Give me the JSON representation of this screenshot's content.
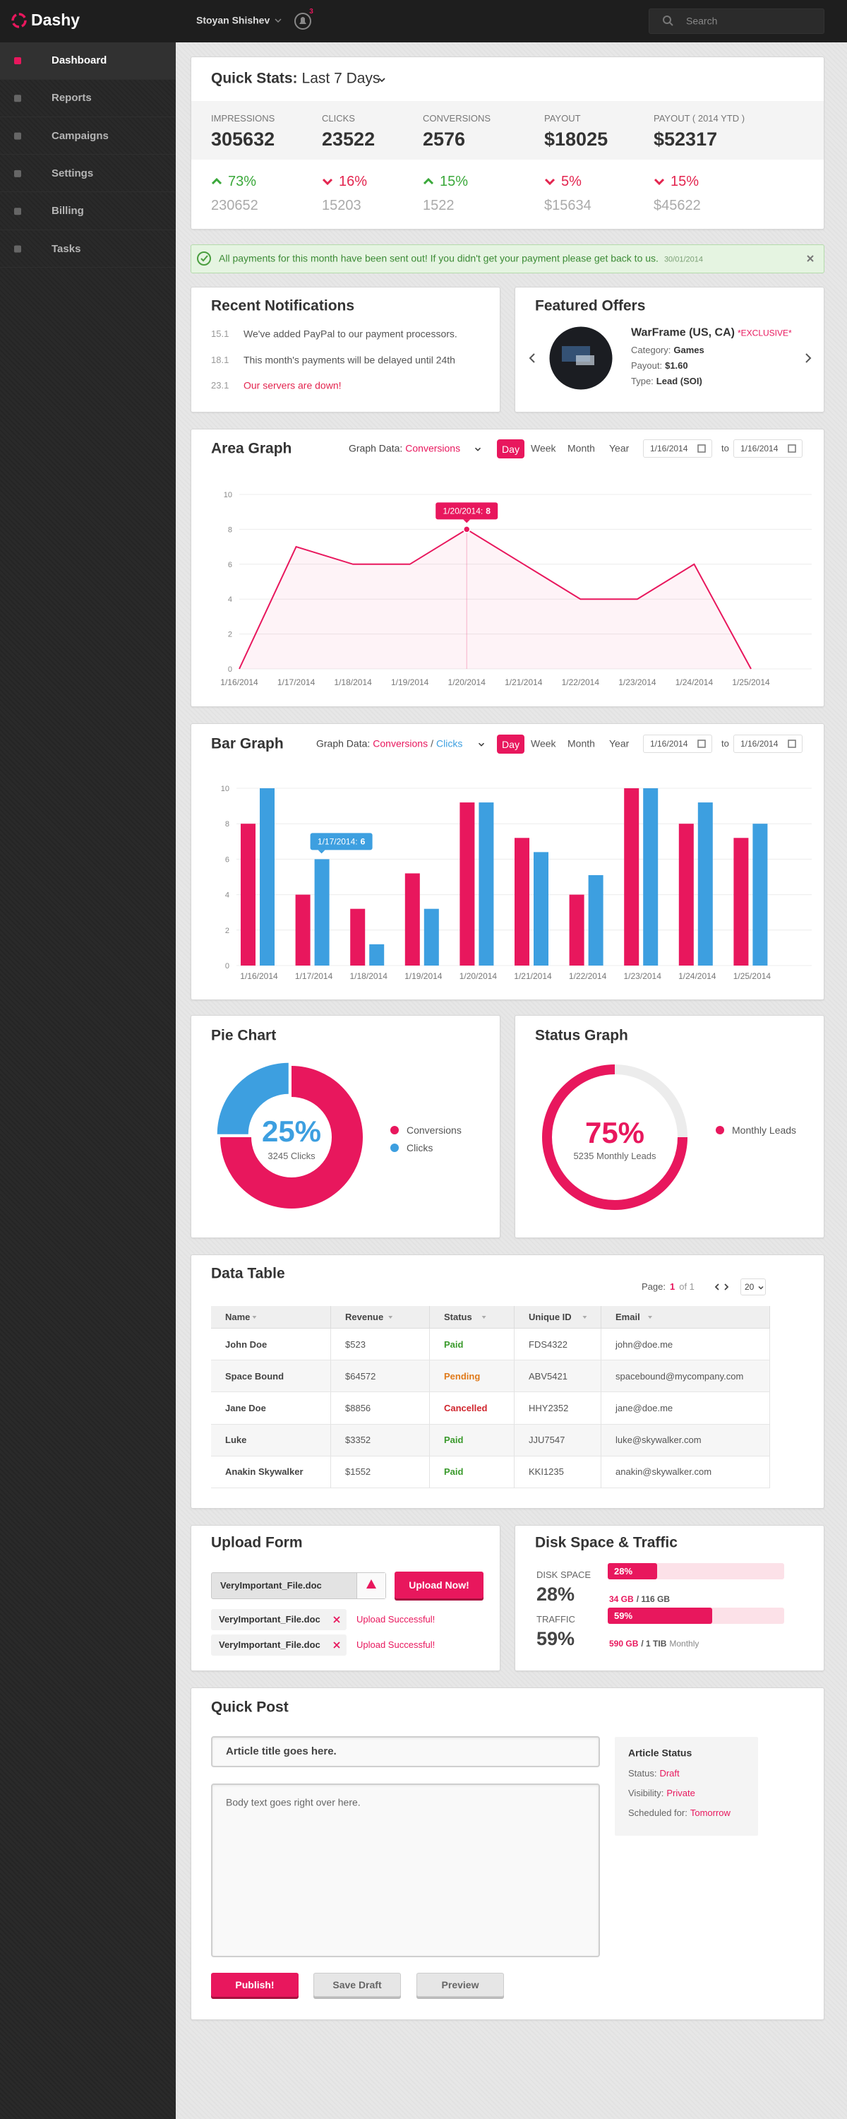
{
  "header": {
    "brand": "Dashy",
    "user": "Stoyan Shishev",
    "notifications": "3",
    "search_placeholder": "Search"
  },
  "sidebar": {
    "items": [
      "Dashboard",
      "Reports",
      "Campaigns",
      "Settings",
      "Billing",
      "Tasks"
    ],
    "active": 0,
    "active_color": "#e8175d"
  },
  "quick_stats": {
    "title": "Quick Stats:",
    "range": "Last 7 Days",
    "up_color": "#3aa83a",
    "down_color": "#e3254f",
    "stats": [
      {
        "label": "IMPRESSIONS",
        "value": 305632,
        "change": "73%",
        "trend": "up",
        "previous": 230652
      },
      {
        "label": "CLICKS",
        "value": 23522,
        "change": "16%",
        "trend": "down",
        "previous": 15203
      },
      {
        "label": "CONVERSIONS",
        "value": 2576,
        "change": "15%",
        "trend": "up",
        "previous": 1522
      },
      {
        "label": "PAYOUT",
        "value": "$18025",
        "change": "5%",
        "trend": "down",
        "previous": "$15634"
      },
      {
        "label": "PAYOUT ( 2014 YTD )",
        "value": "$52317",
        "change": "15%",
        "trend": "down",
        "previous": "$45622"
      }
    ]
  },
  "alert": {
    "text": "All payments for this month have been sent out! If you didn't get your payment please get back to us.",
    "date": "30/01/2014"
  },
  "notifications": {
    "title": "Recent Notifications",
    "items": [
      {
        "date": "15.1",
        "text": "We've added PayPal to our payment processors.",
        "alert": false
      },
      {
        "date": "18.1",
        "text": "This month's payments will be delayed until 24th",
        "alert": false
      },
      {
        "date": "23.1",
        "text": "Our servers are down!",
        "alert": true
      }
    ]
  },
  "featured_offers": {
    "title": "Featured Offers",
    "name": "WarFrame (US, CA)",
    "tag": "*EXCLUSIVE*",
    "details": [
      {
        "label": "Category:",
        "value": "Games"
      },
      {
        "label": "Payout:",
        "value": "$1.60"
      },
      {
        "label": "Type:",
        "value": "Lead (SOI)"
      }
    ]
  },
  "area_graph": {
    "title": "Area Graph",
    "data_label": "Graph Data:",
    "periods": [
      "Day",
      "Week",
      "Month",
      "Year"
    ],
    "active_period": 0,
    "from": "1/16/2014",
    "to_label": "to",
    "to": "1/16/2014",
    "chart": {
      "type": "area",
      "x": [
        "1/16/2014",
        "1/17/2014",
        "1/18/2014",
        "1/19/2014",
        "1/20/2014",
        "1/21/2014",
        "1/22/2014",
        "1/23/2014",
        "1/24/2014",
        "1/25/2014"
      ],
      "series": [
        {
          "name": "Conversions",
          "color": "#e8175d",
          "values": [
            0,
            7,
            6,
            6,
            8,
            6,
            4,
            4,
            6,
            0
          ]
        }
      ],
      "ylim": [
        0,
        10
      ],
      "yticks": [
        0,
        2,
        4,
        6,
        8,
        10
      ],
      "grid": true,
      "tooltip": {
        "label": "1/20/2014:",
        "value": 8
      }
    }
  },
  "bar_graph": {
    "title": "Bar Graph",
    "data_label": "Graph Data:",
    "separator": "/",
    "periods": [
      "Day",
      "Week",
      "Month",
      "Year"
    ],
    "active_period": 0,
    "from": "1/16/2014",
    "to_label": "to",
    "to": "1/16/2014",
    "chart": {
      "type": "bar",
      "categories": [
        "1/16/2014",
        "1/17/2014",
        "1/18/2014",
        "1/19/2014",
        "1/20/2014",
        "1/21/2014",
        "1/22/2014",
        "1/23/2014",
        "1/24/2014",
        "1/25/2014"
      ],
      "series": [
        {
          "name": "Conversions",
          "color": "#e8175d",
          "values": [
            8,
            4,
            3.2,
            5.2,
            9.2,
            7.2,
            4,
            10,
            8,
            7.2
          ]
        },
        {
          "name": "Clicks",
          "color": "#3d9fe0",
          "values": [
            10,
            6,
            1.2,
            3.2,
            9.2,
            6.4,
            5.1,
            10,
            9.2,
            8
          ]
        }
      ],
      "ylim": [
        0,
        10
      ],
      "yticks": [
        0,
        2,
        4,
        6,
        8,
        10
      ],
      "grid": true,
      "tooltip": {
        "label": "1/17/2014:",
        "value": 6
      }
    }
  },
  "pie_chart": {
    "title": "Pie Chart",
    "chart": {
      "type": "pie",
      "categories": [
        "Conversions",
        "Clicks"
      ],
      "values": [
        75,
        25
      ],
      "colors": [
        "#e8175d",
        "#3d9fe0"
      ],
      "center_label": "25%",
      "center_caption": "3245 Clicks"
    }
  },
  "status_graph": {
    "title": "Status Graph",
    "chart": {
      "type": "gauge",
      "categories": [
        "Monthly Leads"
      ],
      "values": [
        75
      ],
      "value_labels": [
        "75%"
      ],
      "colors": [
        "#e8175d"
      ],
      "caption": "5235 Monthly Leads"
    }
  },
  "data_table": {
    "title": "Data Table",
    "page_label": "Page:",
    "page": 1,
    "page_of": "of 1",
    "per_page": 20,
    "columns": [
      "Name",
      "Revenue",
      "Status",
      "Unique ID",
      "Email"
    ],
    "rows": [
      {
        "cells": [
          "John Doe",
          "$523",
          "Paid",
          "FDS4322",
          "john@doe.me"
        ],
        "status_color": "#3a9a2c"
      },
      {
        "cells": [
          "Space Bound",
          "$64572",
          "Pending",
          "ABV5421",
          "spacebound@mycompany.com"
        ],
        "status_color": "#e07a1a"
      },
      {
        "cells": [
          "Jane Doe",
          "$8856",
          "Cancelled",
          "HHY2352",
          "jane@doe.me"
        ],
        "status_color": "#d0262e"
      },
      {
        "cells": [
          "Luke",
          "$3352",
          "Paid",
          "JJU7547",
          "luke@skywalker.com"
        ],
        "status_color": "#3a9a2c"
      },
      {
        "cells": [
          "Anakin Skywalker",
          "$1552",
          "Paid",
          "KKI1235",
          "anakin@skywalker.com"
        ],
        "status_color": "#3a9a2c"
      }
    ]
  },
  "upload_form": {
    "title": "Upload Form",
    "file": "VeryImportant_File.doc",
    "button": "Upload Now!",
    "uploads": [
      {
        "file": "VeryImportant_File.doc",
        "status": "Upload Successful!"
      },
      {
        "file": "VeryImportant_File.doc",
        "status": "Upload Successful!"
      }
    ]
  },
  "disk_space": {
    "title": "Disk Space & Traffic",
    "items": [
      {
        "label": "DISK SPACE",
        "value": 28,
        "value_label": "28%",
        "used": "34 GB",
        "total": "/ 116 GB"
      },
      {
        "label": "TRAFFIC",
        "value": 59,
        "value_label": "59%",
        "used": "590 GB",
        "total": "/ 1 TIB",
        "period": "Monthly"
      }
    ]
  },
  "quick_post": {
    "title": "Quick Post",
    "title_placeholder": "Article title goes here.",
    "body_placeholder": "Body text goes right over here.",
    "buttons": [
      "Publish!",
      "Save Draft",
      "Preview"
    ],
    "status": {
      "title": "Article Status",
      "rows": [
        {
          "label": "Status:",
          "value": "Draft"
        },
        {
          "label": "Visibility:",
          "value": "Private"
        },
        {
          "label": "Scheduled for:",
          "value": "Tomorrow"
        }
      ]
    }
  }
}
